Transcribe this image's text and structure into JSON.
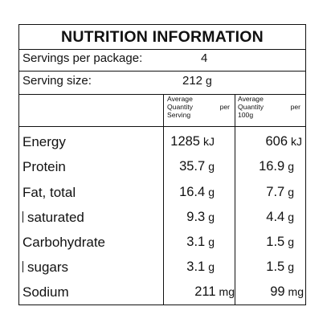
{
  "title": "NUTRITION INFORMATION",
  "servings": {
    "label": "Servings per package:",
    "value": "4"
  },
  "serving_size": {
    "label": "Serving size:",
    "value": "212",
    "unit": "g"
  },
  "columns": {
    "per_serving": [
      "Average",
      "Quantity",
      "per",
      "Serving"
    ],
    "per_100g": [
      "Average",
      "Quantity",
      "per",
      "100g"
    ]
  },
  "rows": [
    {
      "name": "Energy",
      "serving": "1285",
      "serving_unit": "kJ",
      "per100": "606",
      "per100_unit": "kJ"
    },
    {
      "name": "Protein",
      "serving": "35.7",
      "serving_unit": "g",
      "per100": "16.9",
      "per100_unit": "g"
    },
    {
      "name": "Fat, total",
      "serving": "16.4",
      "serving_unit": "g",
      "per100": "7.7",
      "per100_unit": "g"
    },
    {
      "name": "saturated",
      "serving": "9.3",
      "serving_unit": "g",
      "per100": "4.4",
      "per100_unit": "g"
    },
    {
      "name": "Carbohydrate",
      "serving": "3.1",
      "serving_unit": "g",
      "per100": "1.5",
      "per100_unit": "g"
    },
    {
      "name": "sugars",
      "serving": "3.1",
      "serving_unit": "g",
      "per100": "1.5",
      "per100_unit": "g"
    },
    {
      "name": "Sodium",
      "serving": "211",
      "serving_unit": "mg",
      "per100": "99",
      "per100_unit": "mg"
    }
  ]
}
